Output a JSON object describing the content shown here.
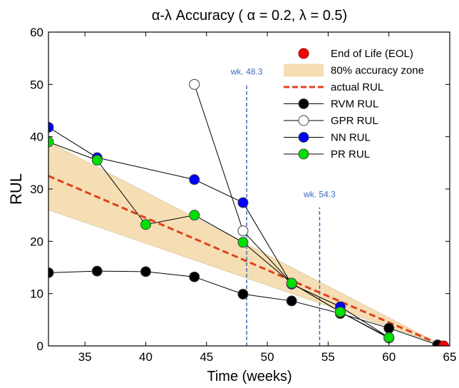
{
  "chart_data": {
    "type": "line",
    "title": "α-λ Accuracy ( α = 0.2,  λ = 0.5)",
    "xlabel": "Time (weeks)",
    "ylabel": "RUL",
    "xlim": [
      32,
      65
    ],
    "ylim": [
      0,
      60
    ],
    "xticks": [
      35,
      40,
      45,
      50,
      55,
      60,
      65
    ],
    "yticks": [
      0,
      10,
      20,
      30,
      40,
      50,
      60
    ],
    "grid": false,
    "legend_position": "top-right",
    "legend": [
      "End of Life (EOL)",
      "80% accuracy zone",
      "actual RUL",
      "RVM RUL",
      "GPR RUL",
      "NN RUL",
      "PR RUL"
    ],
    "eol": {
      "x": 64.5,
      "y": 0,
      "color": "#ff0000"
    },
    "accuracy_zone": {
      "x": [
        32,
        64.5
      ],
      "upper": [
        39,
        0
      ],
      "lower": [
        26,
        0
      ],
      "color": "#f5deb3"
    },
    "actual_rul": {
      "x": [
        32,
        64.5
      ],
      "y": [
        32.5,
        0
      ],
      "color": "#e0401c"
    },
    "series": [
      {
        "name": "RVM RUL",
        "marker_fill": "#000000",
        "x": [
          32,
          36,
          40,
          44,
          48,
          52,
          56,
          60,
          64
        ],
        "y": [
          14,
          14.3,
          14.2,
          13.2,
          9.9,
          8.6,
          6.2,
          3.4,
          0.2
        ]
      },
      {
        "name": "GPR RUL",
        "marker_fill": "#ffffff",
        "x": [
          44,
          48,
          52,
          56,
          60
        ],
        "y": [
          50,
          22,
          12,
          6.5,
          1.5
        ]
      },
      {
        "name": "NN RUL",
        "marker_fill": "#0000ff",
        "x": [
          32,
          36,
          44,
          48,
          52,
          56,
          60
        ],
        "y": [
          41.8,
          36,
          31.8,
          27.4,
          11.8,
          7.5,
          1.6
        ]
      },
      {
        "name": "PR RUL",
        "marker_fill": "#00e000",
        "x": [
          32,
          36,
          40,
          44,
          48,
          52,
          56,
          60
        ],
        "y": [
          39,
          35.5,
          23.2,
          25,
          19.8,
          12,
          6.5,
          1.6
        ]
      }
    ],
    "annotations": [
      {
        "text": "wk. 48.3",
        "x": 48.3,
        "label_y": 51.5
      },
      {
        "text": "wk. 54.3",
        "x": 54.3,
        "label_y": 28
      }
    ],
    "vline_color": "#3a6bc1"
  }
}
